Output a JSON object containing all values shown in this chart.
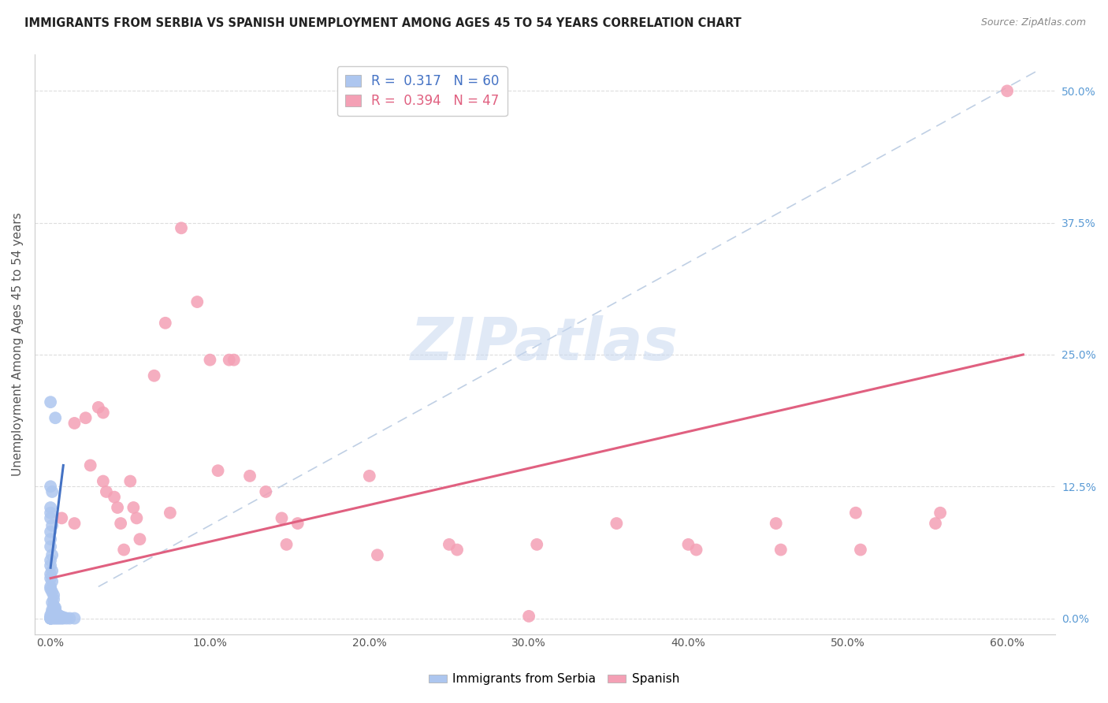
{
  "title": "IMMIGRANTS FROM SERBIA VS SPANISH UNEMPLOYMENT AMONG AGES 45 TO 54 YEARS CORRELATION CHART",
  "source": "Source: ZipAtlas.com",
  "xlabel_vals": [
    0,
    0.1,
    0.2,
    0.3,
    0.4,
    0.5,
    0.6
  ],
  "ylabel_vals": [
    0,
    0.125,
    0.25,
    0.375,
    0.5
  ],
  "ylabel_label": "Unemployment Among Ages 45 to 54 years",
  "serbia_R": "0.317",
  "serbia_N": "60",
  "spanish_R": "0.394",
  "spanish_N": "47",
  "serbia_color": "#adc6ef",
  "spanish_color": "#f4a0b5",
  "serbia_line_color": "#4472c4",
  "spanish_line_color": "#e06080",
  "ref_line_color": "#b0c4de",
  "watermark": "ZIPatlas",
  "watermark_color": "#c8d8f0",
  "serbia_points": [
    [
      0.0,
      0.205
    ],
    [
      0.003,
      0.19
    ],
    [
      0.0,
      0.125
    ],
    [
      0.001,
      0.12
    ],
    [
      0.0,
      0.105
    ],
    [
      0.0,
      0.1
    ],
    [
      0.0,
      0.095
    ],
    [
      0.001,
      0.088
    ],
    [
      0.0,
      0.082
    ],
    [
      0.0,
      0.075
    ],
    [
      0.0,
      0.068
    ],
    [
      0.001,
      0.06
    ],
    [
      0.0,
      0.055
    ],
    [
      0.0,
      0.05
    ],
    [
      0.001,
      0.045
    ],
    [
      0.0,
      0.042
    ],
    [
      0.0,
      0.038
    ],
    [
      0.001,
      0.035
    ],
    [
      0.0,
      0.03
    ],
    [
      0.0,
      0.028
    ],
    [
      0.001,
      0.025
    ],
    [
      0.002,
      0.022
    ],
    [
      0.002,
      0.018
    ],
    [
      0.001,
      0.015
    ],
    [
      0.002,
      0.012
    ],
    [
      0.003,
      0.01
    ],
    [
      0.001,
      0.008
    ],
    [
      0.002,
      0.006
    ],
    [
      0.003,
      0.005
    ],
    [
      0.0,
      0.003
    ],
    [
      0.001,
      0.002
    ],
    [
      0.002,
      0.001
    ],
    [
      0.0,
      0.001
    ],
    [
      0.001,
      0.001
    ],
    [
      0.0,
      0.0
    ],
    [
      0.001,
      0.0
    ],
    [
      0.002,
      0.0
    ],
    [
      0.003,
      0.0
    ],
    [
      0.004,
      0.0
    ],
    [
      0.005,
      0.0
    ],
    [
      0.006,
      0.0
    ],
    [
      0.007,
      0.0
    ],
    [
      0.008,
      0.0
    ],
    [
      0.01,
      0.0
    ],
    [
      0.012,
      0.0
    ],
    [
      0.015,
      0.0
    ],
    [
      0.0,
      0.0
    ],
    [
      0.0,
      0.0
    ],
    [
      0.0,
      0.0
    ],
    [
      0.0,
      0.0
    ],
    [
      0.001,
      0.003
    ],
    [
      0.001,
      0.006
    ],
    [
      0.002,
      0.003
    ],
    [
      0.003,
      0.003
    ],
    [
      0.003,
      0.006
    ],
    [
      0.003,
      0.008
    ],
    [
      0.004,
      0.002
    ],
    [
      0.005,
      0.003
    ],
    [
      0.006,
      0.002
    ],
    [
      0.008,
      0.001
    ]
  ],
  "spanish_points": [
    [
      0.007,
      0.095
    ],
    [
      0.015,
      0.185
    ],
    [
      0.015,
      0.09
    ],
    [
      0.022,
      0.19
    ],
    [
      0.025,
      0.145
    ],
    [
      0.03,
      0.2
    ],
    [
      0.033,
      0.195
    ],
    [
      0.033,
      0.13
    ],
    [
      0.035,
      0.12
    ],
    [
      0.04,
      0.115
    ],
    [
      0.042,
      0.105
    ],
    [
      0.044,
      0.09
    ],
    [
      0.046,
      0.065
    ],
    [
      0.05,
      0.13
    ],
    [
      0.052,
      0.105
    ],
    [
      0.054,
      0.095
    ],
    [
      0.056,
      0.075
    ],
    [
      0.065,
      0.23
    ],
    [
      0.072,
      0.28
    ],
    [
      0.075,
      0.1
    ],
    [
      0.082,
      0.37
    ],
    [
      0.092,
      0.3
    ],
    [
      0.1,
      0.245
    ],
    [
      0.105,
      0.14
    ],
    [
      0.112,
      0.245
    ],
    [
      0.115,
      0.245
    ],
    [
      0.125,
      0.135
    ],
    [
      0.135,
      0.12
    ],
    [
      0.145,
      0.095
    ],
    [
      0.148,
      0.07
    ],
    [
      0.155,
      0.09
    ],
    [
      0.2,
      0.135
    ],
    [
      0.205,
      0.06
    ],
    [
      0.25,
      0.07
    ],
    [
      0.255,
      0.065
    ],
    [
      0.3,
      0.002
    ],
    [
      0.305,
      0.07
    ],
    [
      0.355,
      0.09
    ],
    [
      0.4,
      0.07
    ],
    [
      0.405,
      0.065
    ],
    [
      0.455,
      0.09
    ],
    [
      0.458,
      0.065
    ],
    [
      0.505,
      0.1
    ],
    [
      0.508,
      0.065
    ],
    [
      0.555,
      0.09
    ],
    [
      0.558,
      0.1
    ],
    [
      0.6,
      0.5
    ]
  ],
  "xlim": [
    -0.01,
    0.63
  ],
  "ylim": [
    -0.015,
    0.535
  ],
  "serbia_line_x": [
    0.0,
    0.008
  ],
  "serbia_line_y": [
    0.048,
    0.145
  ],
  "spanish_line_x": [
    0.0,
    0.61
  ],
  "spanish_line_y": [
    0.038,
    0.25
  ],
  "ref_line_x": [
    0.03,
    0.62
  ],
  "ref_line_y": [
    0.03,
    0.52
  ],
  "figsize": [
    14.06,
    8.92
  ],
  "dpi": 100
}
